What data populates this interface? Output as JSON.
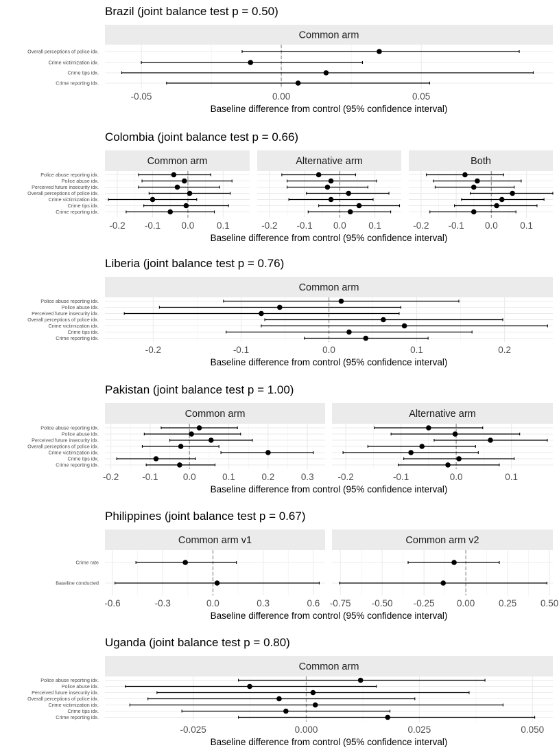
{
  "chart_data": [
    {
      "type": "errorbar",
      "title": "Brazil (joint balance test p = 0.50)",
      "xlabel": "Baseline difference from control (95% confidence interval)",
      "rows": [
        "Overall perceptions of police idx.",
        "Crime victimization idx.",
        "Crime tips idx.",
        "Crime reporting idx."
      ],
      "xlim": [
        -0.063,
        0.097
      ],
      "xticks": [
        -0.05,
        0.0,
        0.05
      ],
      "xtick_labels": [
        "-0.05",
        "0.00",
        "0.05"
      ],
      "panels": [
        {
          "name": "Common arm",
          "points": [
            {
              "est": 0.035,
              "lo": -0.014,
              "hi": 0.085
            },
            {
              "est": -0.011,
              "lo": -0.05,
              "hi": 0.029
            },
            {
              "est": 0.016,
              "lo": -0.057,
              "hi": 0.09
            },
            {
              "est": 0.006,
              "lo": -0.041,
              "hi": 0.053
            }
          ]
        }
      ]
    },
    {
      "type": "errorbar",
      "title": "Colombia (joint balance test p = 0.66)",
      "xlabel": "Baseline difference from control (95% confidence interval)",
      "rows": [
        "Police abuse reporting idx.",
        "Police abuse idx.",
        "Perceived future insecurity idx.",
        "Overall perceptions of police idx.",
        "Crime victimization idx.",
        "Crime tips idx.",
        "Crime reporting idx."
      ],
      "xlim": [
        -0.235,
        0.175
      ],
      "xticks": [
        -0.2,
        -0.1,
        0.0,
        0.1
      ],
      "xtick_labels": [
        "-0.2",
        "-0.1",
        "0.0",
        "0.1"
      ],
      "panels": [
        {
          "name": "Common arm",
          "points": [
            {
              "est": -0.04,
              "lo": -0.14,
              "hi": 0.065
            },
            {
              "est": -0.01,
              "lo": -0.13,
              "hi": 0.125
            },
            {
              "est": -0.03,
              "lo": -0.14,
              "hi": 0.09
            },
            {
              "est": 0.005,
              "lo": -0.11,
              "hi": 0.12
            },
            {
              "est": -0.1,
              "lo": -0.225,
              "hi": 0.025
            },
            {
              "est": -0.005,
              "lo": -0.125,
              "hi": 0.115
            },
            {
              "est": -0.05,
              "lo": -0.175,
              "hi": 0.075
            }
          ]
        },
        {
          "name": "Alternative arm",
          "points": [
            {
              "est": -0.06,
              "lo": -0.165,
              "hi": 0.045
            },
            {
              "est": -0.025,
              "lo": -0.15,
              "hi": 0.105
            },
            {
              "est": -0.035,
              "lo": -0.15,
              "hi": 0.08
            },
            {
              "est": 0.025,
              "lo": -0.095,
              "hi": 0.14
            },
            {
              "est": -0.025,
              "lo": -0.145,
              "hi": 0.095
            },
            {
              "est": 0.055,
              "lo": -0.06,
              "hi": 0.17
            },
            {
              "est": 0.03,
              "lo": -0.09,
              "hi": 0.145
            }
          ]
        },
        {
          "name": "Both",
          "points": [
            {
              "est": -0.075,
              "lo": -0.185,
              "hi": 0.035
            },
            {
              "est": -0.04,
              "lo": -0.165,
              "hi": 0.085
            },
            {
              "est": -0.05,
              "lo": -0.16,
              "hi": 0.065
            },
            {
              "est": 0.06,
              "lo": -0.06,
              "hi": 0.175
            },
            {
              "est": 0.03,
              "lo": -0.085,
              "hi": 0.15
            },
            {
              "est": 0.015,
              "lo": -0.105,
              "hi": 0.13
            },
            {
              "est": -0.05,
              "lo": -0.175,
              "hi": 0.07
            }
          ]
        }
      ]
    },
    {
      "type": "errorbar",
      "title": "Liberia (joint balance test p = 0.76)",
      "xlabel": "Baseline difference from control (95% confidence interval)",
      "rows": [
        "Police abuse reporting idx.",
        "Police abuse idx.",
        "Perceived future insecurity idx.",
        "Overall perceptions of police idx.",
        "Crime victimization idx.",
        "Crime tips idx.",
        "Crime reporting idx."
      ],
      "xlim": [
        -0.255,
        0.255
      ],
      "xticks": [
        -0.2,
        -0.1,
        0.0,
        0.1,
        0.2
      ],
      "xtick_labels": [
        "-0.2",
        "-0.1",
        "0.0",
        "0.1",
        "0.2"
      ],
      "panels": [
        {
          "name": "Common arm",
          "points": [
            {
              "est": 0.014,
              "lo": -0.12,
              "hi": 0.148
            },
            {
              "est": -0.056,
              "lo": -0.193,
              "hi": 0.082
            },
            {
              "est": -0.077,
              "lo": -0.233,
              "hi": 0.08
            },
            {
              "est": 0.062,
              "lo": -0.073,
              "hi": 0.198
            },
            {
              "est": 0.086,
              "lo": -0.077,
              "hi": 0.249
            },
            {
              "est": 0.023,
              "lo": -0.117,
              "hi": 0.163
            },
            {
              "est": 0.042,
              "lo": -0.028,
              "hi": 0.113
            }
          ]
        }
      ]
    },
    {
      "type": "errorbar",
      "title": "Pakistan (joint balance test p = 1.00)",
      "xlabel": "Baseline difference from control (95% confidence interval)",
      "rows": [
        "Police abuse reporting idx.",
        "Police abuse idx.",
        "Perceived future insecurity idx.",
        "Overall perceptions of police idx.",
        "Crime victimization idx.",
        "Crime tips idx.",
        "Crime reporting idx."
      ],
      "panels": [
        {
          "name": "Common arm",
          "xlim": [
            -0.215,
            0.345
          ],
          "xticks": [
            -0.2,
            -0.1,
            0.0,
            0.1,
            0.2,
            0.3
          ],
          "xtick_labels": [
            "-0.2",
            "-0.1",
            "0.0",
            "0.1",
            "0.2",
            "0.3"
          ],
          "points": [
            {
              "est": 0.025,
              "lo": -0.072,
              "hi": 0.122
            },
            {
              "est": 0.005,
              "lo": -0.115,
              "hi": 0.13
            },
            {
              "est": 0.055,
              "lo": -0.05,
              "hi": 0.16
            },
            {
              "est": -0.022,
              "lo": -0.12,
              "hi": 0.075
            },
            {
              "est": 0.2,
              "lo": 0.08,
              "hi": 0.315
            },
            {
              "est": -0.085,
              "lo": -0.185,
              "hi": 0.015
            },
            {
              "est": -0.025,
              "lo": -0.11,
              "hi": 0.065
            }
          ]
        },
        {
          "name": "Alternative arm",
          "xlim": [
            -0.225,
            0.175
          ],
          "xticks": [
            -0.2,
            -0.1,
            0.0,
            0.1
          ],
          "xtick_labels": [
            "-0.2",
            "-0.1",
            "0.0",
            "0.1"
          ],
          "points": [
            {
              "est": -0.05,
              "lo": -0.148,
              "hi": 0.048
            },
            {
              "est": -0.002,
              "lo": -0.118,
              "hi": 0.115
            },
            {
              "est": 0.062,
              "lo": -0.04,
              "hi": 0.165
            },
            {
              "est": -0.062,
              "lo": -0.16,
              "hi": 0.035
            },
            {
              "est": -0.082,
              "lo": -0.205,
              "hi": 0.04
            },
            {
              "est": 0.005,
              "lo": -0.095,
              "hi": 0.105
            },
            {
              "est": -0.015,
              "lo": -0.105,
              "hi": 0.078
            }
          ]
        }
      ]
    },
    {
      "type": "errorbar",
      "title": "Philippines (joint balance test p = 0.67)",
      "xlabel": "Baseline difference from control (95% confidence interval)",
      "rows": [
        "Crime rate",
        "Baseline conducted"
      ],
      "panels": [
        {
          "name": "Common arm v1",
          "xlim": [
            -0.645,
            0.67
          ],
          "xticks": [
            -0.6,
            -0.3,
            0.0,
            0.3,
            0.6
          ],
          "xtick_labels": [
            "-0.6",
            "-0.3",
            "0.0",
            "0.3",
            "0.6"
          ],
          "points": [
            {
              "est": -0.165,
              "lo": -0.46,
              "hi": 0.14
            },
            {
              "est": 0.025,
              "lo": -0.585,
              "hi": 0.635
            }
          ]
        },
        {
          "name": "Common arm v2",
          "xlim": [
            -0.8,
            0.52
          ],
          "xticks": [
            -0.75,
            -0.5,
            -0.25,
            0.0,
            0.25,
            0.5
          ],
          "xtick_labels": [
            "-0.75",
            "-0.50",
            "-0.25",
            "0.00",
            "0.25",
            "0.50"
          ],
          "points": [
            {
              "est": -0.07,
              "lo": -0.345,
              "hi": 0.2
            },
            {
              "est": -0.135,
              "lo": -0.755,
              "hi": 0.485
            }
          ]
        }
      ]
    },
    {
      "type": "errorbar",
      "title": "Uganda (joint balance test p = 0.80)",
      "xlabel": "Baseline difference from control (95% confidence interval)",
      "rows": [
        "Police abuse reporting idx.",
        "Police abuse idx.",
        "Perceived future insecurity idx.",
        "Overall perceptions of police idx.",
        "Crime victimization idx.",
        "Crime tips idx.",
        "Crime reporting idx."
      ],
      "xlim": [
        -0.0445,
        0.0545
      ],
      "xticks": [
        -0.025,
        0.0,
        0.025,
        0.05
      ],
      "xtick_labels": [
        "-0.025",
        "0.000",
        "0.025",
        "0.050"
      ],
      "panels": [
        {
          "name": "Common arm",
          "points": [
            {
              "est": 0.012,
              "lo": -0.015,
              "hi": 0.0395
            },
            {
              "est": -0.0125,
              "lo": -0.04,
              "hi": 0.0155
            },
            {
              "est": 0.0015,
              "lo": -0.033,
              "hi": 0.036
            },
            {
              "est": -0.006,
              "lo": -0.035,
              "hi": 0.024
            },
            {
              "est": 0.002,
              "lo": -0.039,
              "hi": 0.0435
            },
            {
              "est": -0.0045,
              "lo": -0.0275,
              "hi": 0.0185
            },
            {
              "est": 0.018,
              "lo": -0.015,
              "hi": 0.0505
            }
          ]
        }
      ]
    }
  ]
}
